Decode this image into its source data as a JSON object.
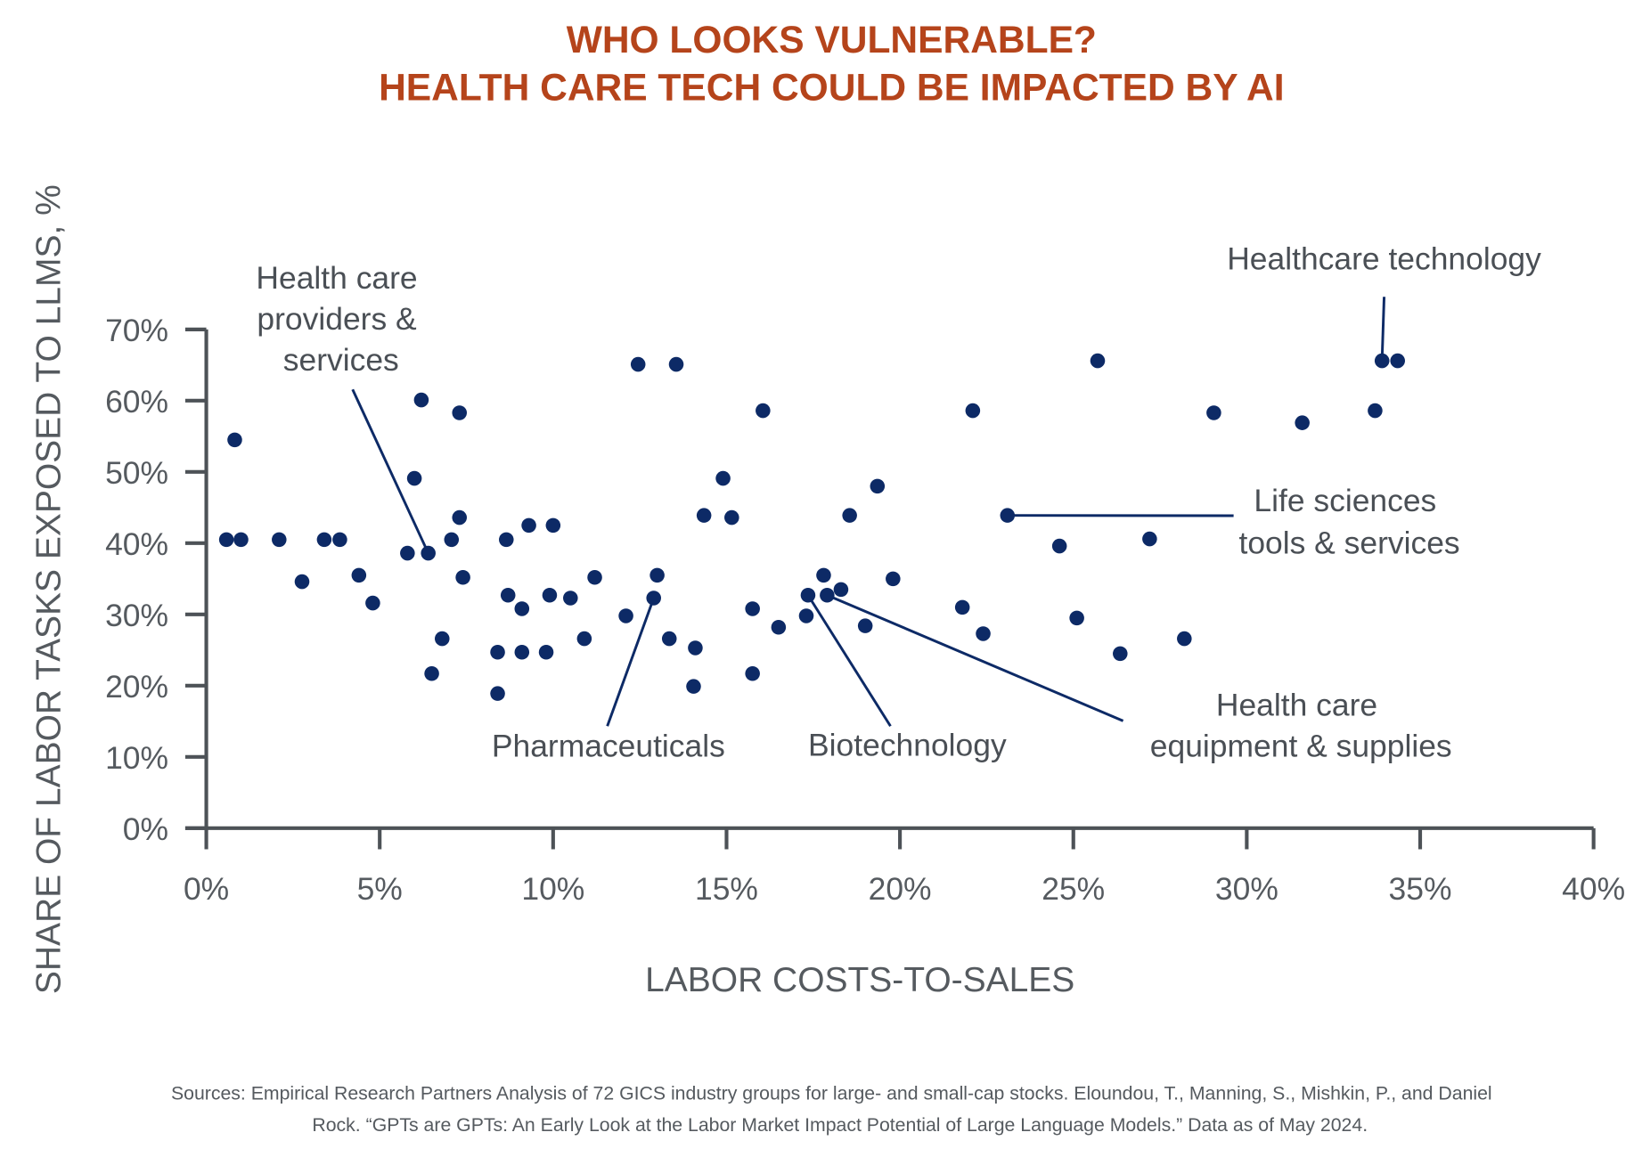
{
  "chart_data": {
    "type": "scatter",
    "title": [
      "WHO LOOKS VULNERABLE?",
      "HEALTH CARE TECH COULD BE IMPACTED BY AI"
    ],
    "xlabel": "LABOR COSTS-TO-SALES",
    "ylabel": "SHARE OF LABOR TASKS EXPOSED TO LLMS, %",
    "xlim": [
      0,
      40
    ],
    "ylim": [
      0,
      70
    ],
    "xticks": [
      "0%",
      "5%",
      "10%",
      "15%",
      "20%",
      "25%",
      "30%",
      "35%",
      "40%"
    ],
    "yticks": [
      "0%",
      "10%",
      "20%",
      "30%",
      "40%",
      "50%",
      "60%",
      "70%"
    ],
    "grid": false,
    "color": "#0d2a66",
    "points": [
      [
        0.58,
        40.5
      ],
      [
        0.82,
        54.5
      ],
      [
        1.0,
        40.5
      ],
      [
        2.1,
        40.5
      ],
      [
        2.76,
        34.6
      ],
      [
        3.4,
        40.5
      ],
      [
        3.85,
        40.5
      ],
      [
        4.4,
        35.5
      ],
      [
        4.8,
        31.6
      ],
      [
        5.8,
        38.6
      ],
      [
        6.0,
        49.1
      ],
      [
        6.2,
        60.1
      ],
      [
        6.4,
        38.6
      ],
      [
        6.5,
        21.7
      ],
      [
        6.8,
        26.6
      ],
      [
        7.07,
        40.5
      ],
      [
        7.3,
        58.3
      ],
      [
        7.3,
        43.6
      ],
      [
        7.4,
        35.2
      ],
      [
        8.4,
        24.7
      ],
      [
        8.4,
        18.9
      ],
      [
        8.65,
        40.5
      ],
      [
        8.7,
        32.7
      ],
      [
        9.1,
        30.8
      ],
      [
        9.1,
        24.7
      ],
      [
        9.3,
        42.5
      ],
      [
        9.8,
        24.7
      ],
      [
        9.9,
        32.7
      ],
      [
        10.0,
        42.5
      ],
      [
        10.5,
        32.3
      ],
      [
        10.9,
        26.6
      ],
      [
        11.2,
        35.2
      ],
      [
        12.1,
        29.8
      ],
      [
        12.45,
        65.1
      ],
      [
        12.9,
        32.3
      ],
      [
        13.0,
        35.5
      ],
      [
        13.35,
        26.6
      ],
      [
        13.55,
        65.1
      ],
      [
        14.1,
        25.3
      ],
      [
        14.05,
        19.9
      ],
      [
        14.35,
        43.9
      ],
      [
        14.9,
        49.1
      ],
      [
        15.15,
        43.6
      ],
      [
        15.75,
        30.8
      ],
      [
        15.75,
        21.7
      ],
      [
        16.05,
        58.6
      ],
      [
        16.5,
        28.2
      ],
      [
        17.3,
        29.8
      ],
      [
        17.35,
        32.7
      ],
      [
        17.8,
        35.5
      ],
      [
        17.9,
        32.7
      ],
      [
        18.3,
        33.5
      ],
      [
        18.55,
        43.9
      ],
      [
        19.0,
        28.4
      ],
      [
        19.35,
        48.0
      ],
      [
        19.8,
        35.0
      ],
      [
        21.8,
        31.0
      ],
      [
        22.1,
        58.6
      ],
      [
        22.4,
        27.3
      ],
      [
        23.1,
        43.9
      ],
      [
        24.6,
        39.6
      ],
      [
        25.1,
        29.5
      ],
      [
        25.7,
        65.6
      ],
      [
        26.35,
        24.5
      ],
      [
        27.2,
        40.6
      ],
      [
        28.2,
        26.6
      ],
      [
        29.05,
        58.3
      ],
      [
        31.6,
        56.9
      ],
      [
        33.7,
        58.6
      ],
      [
        33.9,
        65.6
      ],
      [
        34.35,
        65.6
      ]
    ],
    "annotations": [
      {
        "lines": [
          "Health care",
          "providers &",
          "services"
        ],
        "point": [
          6.4,
          38.6
        ]
      },
      {
        "lines": [
          "Healthcare technology"
        ],
        "point": [
          33.9,
          65.6
        ]
      },
      {
        "lines": [
          "Life sciences",
          "tools & services"
        ],
        "point": [
          23.1,
          43.9
        ]
      },
      {
        "lines": [
          "Pharmaceuticals"
        ],
        "point": [
          12.9,
          32.3
        ]
      },
      {
        "lines": [
          "Biotechnology"
        ],
        "point": [
          17.35,
          32.7
        ]
      },
      {
        "lines": [
          "Health care",
          "equipment & supplies"
        ],
        "point": [
          17.9,
          32.7
        ]
      }
    ]
  },
  "sources": [
    "Sources: Empirical Research Partners Analysis of 72 GICS industry groups for large- and small-cap stocks. Eloundou, T., Manning, S., Mishkin, P., and Daniel",
    "Rock. “GPTs are GPTs: An Early Look at the Labor Market Impact Potential of Large Language Models.” Data as of May 2024."
  ]
}
